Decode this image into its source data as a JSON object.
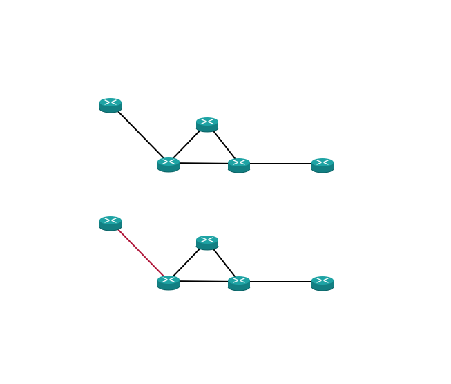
{
  "colors": {
    "background": "#ffffff",
    "link_default": "#000000",
    "link_highlight": "#b0173a",
    "router_body": "#137f82",
    "router_top": "#1ea3a4",
    "router_mark": "#ffffff"
  },
  "icon": "router-icon",
  "topologies": [
    {
      "id": "top",
      "routers": [
        {
          "id": "r1"
        },
        {
          "id": "r2"
        },
        {
          "id": "r3"
        },
        {
          "id": "r4"
        },
        {
          "id": "r5"
        }
      ],
      "links": [
        {
          "from": "r1",
          "to": "r2",
          "state": "normal"
        },
        {
          "from": "r2",
          "to": "r3",
          "state": "normal"
        },
        {
          "from": "r2",
          "to": "r4",
          "state": "normal"
        },
        {
          "from": "r3",
          "to": "r4",
          "state": "normal"
        },
        {
          "from": "r4",
          "to": "r5",
          "state": "normal"
        }
      ]
    },
    {
      "id": "bottom",
      "routers": [
        {
          "id": "r1"
        },
        {
          "id": "r2"
        },
        {
          "id": "r3"
        },
        {
          "id": "r4"
        },
        {
          "id": "r5"
        }
      ],
      "links": [
        {
          "from": "r1",
          "to": "r2",
          "state": "highlighted"
        },
        {
          "from": "r2",
          "to": "r3",
          "state": "normal"
        },
        {
          "from": "r2",
          "to": "r4",
          "state": "normal"
        },
        {
          "from": "r3",
          "to": "r4",
          "state": "normal"
        },
        {
          "from": "r4",
          "to": "r5",
          "state": "normal"
        }
      ]
    }
  ]
}
